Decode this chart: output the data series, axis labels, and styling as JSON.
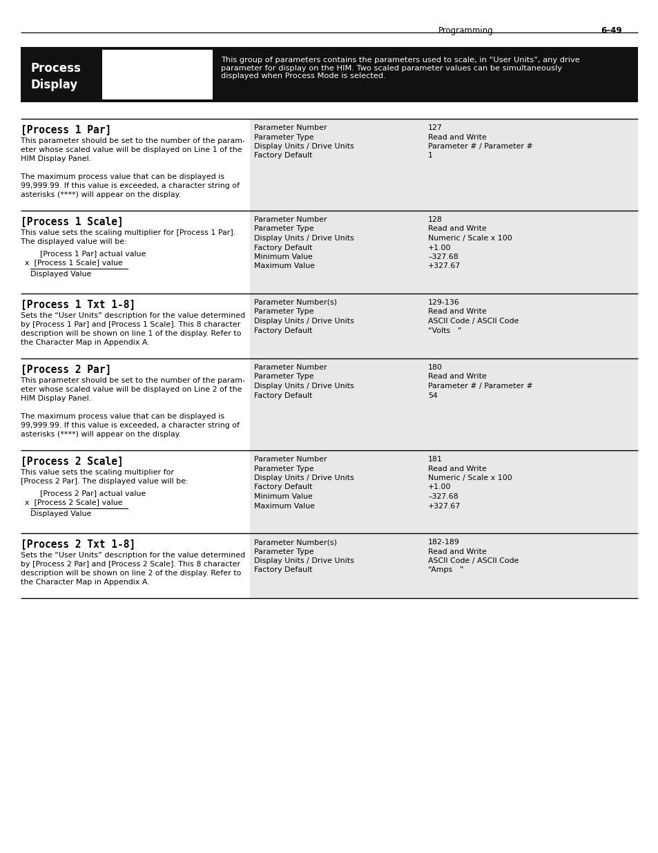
{
  "page_header_left": "Programming",
  "page_header_right": "6–49",
  "bg_color": "#ffffff",
  "header_bg": "#1a1a1a",
  "section_bg": "#e8e8e8",
  "sections": [
    {
      "title": "[Process 1 Par]",
      "body_lines": [
        "This parameter should be set to the number of the param-",
        "eter whose scaled value will be displayed on Line 1 of the",
        "HIM Display Panel.",
        "",
        "The maximum process value that can be displayed is",
        "99,999.99. If this value is exceeded, a character string of",
        "asterisks (****) will appear on the display."
      ],
      "formula": null,
      "params": [
        {
          "label": "Parameter Number",
          "value": "127"
        },
        {
          "label": "Parameter Type",
          "value": "Read and Write"
        },
        {
          "label": "Display Units / Drive Units",
          "value": "Parameter # / Parameter #"
        },
        {
          "label": "Factory Default",
          "value": "1"
        }
      ]
    },
    {
      "title": "[Process 1 Scale]",
      "body_lines": [
        "This value sets the scaling multiplier for [Process 1 Par].",
        "The displayed value will be:"
      ],
      "formula": {
        "num": "    [Process 1 Par] actual value",
        "mult": "x  [Process 1 Scale] value",
        "result": "    Displayed Value"
      },
      "params": [
        {
          "label": "Parameter Number",
          "value": "128"
        },
        {
          "label": "Parameter Type",
          "value": "Read and Write"
        },
        {
          "label": "Display Units / Drive Units",
          "value": "Numeric / Scale x 100"
        },
        {
          "label": "Factory Default",
          "value": "+1.00"
        },
        {
          "label": "Minimum Value",
          "value": "–327.68"
        },
        {
          "label": "Maximum Value",
          "value": "+327.67"
        }
      ]
    },
    {
      "title": "[Process 1 Txt 1-8]",
      "body_lines": [
        "Sets the “User Units” description for the value determined",
        "by [Process 1 Par] and [Process 1 Scale]. This 8 character",
        "description will be shown on line 1 of the display. Refer to",
        "the Character Map in Appendix A."
      ],
      "formula": null,
      "params": [
        {
          "label": "Parameter Number(s)",
          "value": "129-136"
        },
        {
          "label": "Parameter Type",
          "value": "Read and Write"
        },
        {
          "label": "Display Units / Drive Units",
          "value": "ASCII Code / ASCII Code"
        },
        {
          "label": "Factory Default",
          "value": "“Volts   ”"
        }
      ]
    },
    {
      "title": "[Process 2 Par]",
      "body_lines": [
        "This parameter should be set to the number of the param-",
        "eter whose scaled value will be displayed on Line 2 of the",
        "HIM Display Panel.",
        "",
        "The maximum process value that can be displayed is",
        "99,999.99. If this value is exceeded, a character string of",
        "asterisks (****) will appear on the display."
      ],
      "formula": null,
      "params": [
        {
          "label": "Parameter Number",
          "value": "180"
        },
        {
          "label": "Parameter Type",
          "value": "Read and Write"
        },
        {
          "label": "Display Units / Drive Units",
          "value": "Parameter # / Parameter #"
        },
        {
          "label": "Factory Default",
          "value": "54"
        }
      ]
    },
    {
      "title": "[Process 2 Scale]",
      "body_lines": [
        "This value sets the scaling multiplier for",
        "[Process 2 Par]. The displayed value will be:"
      ],
      "formula": {
        "num": "    [Process 2 Par] actual value",
        "mult": "x  [Process 2 Scale] value",
        "result": "    Displayed Value"
      },
      "params": [
        {
          "label": "Parameter Number",
          "value": "181"
        },
        {
          "label": "Parameter Type",
          "value": "Read and Write"
        },
        {
          "label": "Display Units / Drive Units",
          "value": "Numeric / Scale x 100"
        },
        {
          "label": "Factory Default",
          "value": "+1.00"
        },
        {
          "label": "Minimum Value",
          "value": "–327.68"
        },
        {
          "label": "Maximum Value",
          "value": "+327.67"
        }
      ]
    },
    {
      "title": "[Process 2 Txt 1-8]",
      "body_lines": [
        "Sets the “User Units” description for the value determined",
        "by [Process 2 Par] and [Process 2 Scale]. This 8 character",
        "description will be shown on line 2 of the display. Refer to",
        "the Character Map in Appendix A."
      ],
      "formula": null,
      "params": [
        {
          "label": "Parameter Number(s)",
          "value": "182-189"
        },
        {
          "label": "Parameter Type",
          "value": "Read and Write"
        },
        {
          "label": "Display Units / Drive Units",
          "value": "ASCII Code / ASCII Code"
        },
        {
          "label": "Factory Default",
          "value": "“Amps   ”"
        }
      ]
    }
  ],
  "header_description": "This group of parameters contains the parameters used to scale, in “User Units”, any drive\nparameter for display on the HIM. Two scaled parameter values can be simultaneously\ndisplayed when Process Mode is selected."
}
